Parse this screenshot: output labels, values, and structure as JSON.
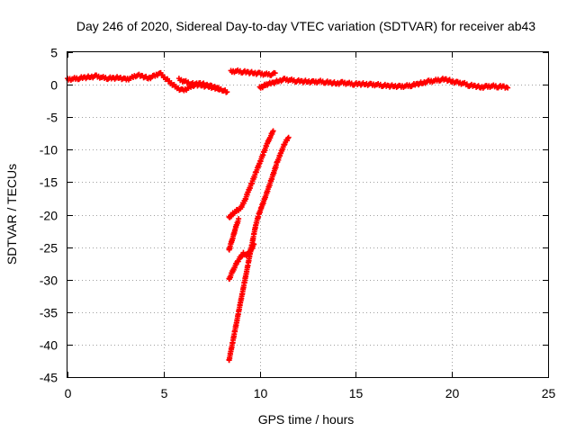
{
  "chart_data": {
    "type": "scatter",
    "title": "Day 246 of 2020, Sidereal Day-to-day VTEC variation (SDTVAR) for receiver ab43",
    "xlabel": "GPS time / hours",
    "ylabel": "SDTVAR / TECUs",
    "xlim": [
      0,
      25
    ],
    "ylim": [
      -45,
      5
    ],
    "xticks": [
      0,
      5,
      10,
      15,
      20,
      25
    ],
    "yticks": [
      5,
      0,
      -5,
      -10,
      -15,
      -20,
      -25,
      -30,
      -35,
      -40,
      -45
    ],
    "grid": true,
    "series": [
      {
        "name": "SDTVAR",
        "color": "#ff0000",
        "marker": "plus",
        "tracks": [
          [
            [
              0.0,
              0.8
            ],
            [
              0.3,
              0.9
            ],
            [
              0.6,
              1.0
            ],
            [
              0.9,
              1.1
            ],
            [
              1.2,
              1.2
            ],
            [
              1.5,
              1.3
            ],
            [
              1.8,
              1.1
            ],
            [
              2.1,
              1.0
            ],
            [
              2.4,
              1.0
            ],
            [
              2.7,
              1.1
            ],
            [
              3.0,
              0.8
            ],
            [
              3.3,
              1.0
            ],
            [
              3.6,
              1.5
            ],
            [
              3.9,
              1.3
            ],
            [
              4.2,
              1.0
            ],
            [
              4.5,
              1.3
            ],
            [
              4.8,
              1.8
            ],
            [
              5.1,
              1.0
            ],
            [
              5.4,
              0.2
            ],
            [
              5.7,
              -0.5
            ],
            [
              6.0,
              -0.9
            ],
            [
              6.3,
              -0.5
            ],
            [
              6.6,
              0.0
            ],
            [
              6.9,
              0.2
            ],
            [
              7.2,
              0.0
            ],
            [
              7.5,
              -0.3
            ],
            [
              7.8,
              -0.6
            ],
            [
              8.1,
              -0.8
            ],
            [
              8.3,
              -1.2
            ]
          ],
          [
            [
              5.8,
              0.8
            ],
            [
              6.1,
              0.5
            ],
            [
              6.4,
              0.2
            ],
            [
              6.7,
              0.0
            ],
            [
              7.0,
              -0.1
            ],
            [
              7.3,
              -0.3
            ],
            [
              7.6,
              -0.4
            ],
            [
              7.9,
              -0.6
            ]
          ],
          [
            [
              8.5,
              2.0
            ],
            [
              8.8,
              2.1
            ],
            [
              9.1,
              2.0
            ],
            [
              9.4,
              1.9
            ],
            [
              9.7,
              1.8
            ],
            [
              10.0,
              1.7
            ],
            [
              10.3,
              1.6
            ],
            [
              10.6,
              1.6
            ],
            [
              10.8,
              1.7
            ]
          ],
          [
            [
              10.0,
              -0.5
            ],
            [
              10.2,
              -0.2
            ],
            [
              10.4,
              0.1
            ],
            [
              10.7,
              0.3
            ],
            [
              11.0,
              0.6
            ],
            [
              11.3,
              0.8
            ],
            [
              11.6,
              0.7
            ],
            [
              11.9,
              0.6
            ],
            [
              12.2,
              0.5
            ],
            [
              12.5,
              0.5
            ],
            [
              12.8,
              0.4
            ],
            [
              13.1,
              0.5
            ],
            [
              13.4,
              0.4
            ],
            [
              13.7,
              0.3
            ],
            [
              14.0,
              0.2
            ],
            [
              14.3,
              0.3
            ],
            [
              14.6,
              0.2
            ],
            [
              14.9,
              0.1
            ],
            [
              15.2,
              0.1
            ],
            [
              15.5,
              0.1
            ],
            [
              15.8,
              0.0
            ],
            [
              16.1,
              0.0
            ],
            [
              16.4,
              -0.1
            ],
            [
              16.7,
              -0.2
            ],
            [
              17.0,
              -0.2
            ],
            [
              17.3,
              -0.3
            ],
            [
              17.6,
              -0.2
            ],
            [
              17.9,
              -0.1
            ],
            [
              18.2,
              0.1
            ],
            [
              18.5,
              0.3
            ],
            [
              18.8,
              0.5
            ],
            [
              19.1,
              0.6
            ],
            [
              19.4,
              0.8
            ],
            [
              19.7,
              0.8
            ],
            [
              20.0,
              0.5
            ],
            [
              20.3,
              0.3
            ],
            [
              20.6,
              0.2
            ],
            [
              20.9,
              -0.1
            ],
            [
              21.2,
              -0.2
            ],
            [
              21.5,
              -0.4
            ],
            [
              21.8,
              -0.3
            ],
            [
              22.1,
              -0.2
            ],
            [
              22.4,
              -0.3
            ],
            [
              22.7,
              -0.3
            ],
            [
              22.9,
              -0.4
            ]
          ],
          [
            [
              8.4,
              -20.5
            ],
            [
              8.55,
              -20.0
            ],
            [
              8.7,
              -19.6
            ],
            [
              8.85,
              -19.3
            ],
            [
              9.0,
              -19.0
            ],
            [
              9.2,
              -18.0
            ],
            [
              9.4,
              -16.5
            ],
            [
              9.6,
              -15.0
            ],
            [
              9.8,
              -13.5
            ],
            [
              10.0,
              -12.0
            ],
            [
              10.2,
              -10.5
            ],
            [
              10.4,
              -9.0
            ],
            [
              10.55,
              -8.0
            ],
            [
              10.7,
              -7.2
            ]
          ],
          [
            [
              8.4,
              -25.5
            ],
            [
              8.5,
              -24.5
            ],
            [
              8.6,
              -23.5
            ],
            [
              8.7,
              -22.5
            ],
            [
              8.8,
              -21.5
            ],
            [
              8.9,
              -20.8
            ]
          ],
          [
            [
              8.4,
              -30.0
            ],
            [
              8.55,
              -29.0
            ],
            [
              8.7,
              -28.0
            ],
            [
              8.85,
              -27.2
            ],
            [
              9.0,
              -26.5
            ],
            [
              9.15,
              -26.0
            ],
            [
              9.3,
              -26.3
            ],
            [
              9.45,
              -25.8
            ],
            [
              9.6,
              -25.2
            ],
            [
              9.7,
              -24.5
            ]
          ],
          [
            [
              8.4,
              -42.5
            ],
            [
              8.5,
              -41.0
            ],
            [
              8.6,
              -39.5
            ],
            [
              8.7,
              -38.0
            ],
            [
              8.8,
              -36.5
            ],
            [
              8.9,
              -35.0
            ],
            [
              9.0,
              -33.5
            ],
            [
              9.1,
              -32.0
            ],
            [
              9.2,
              -30.5
            ],
            [
              9.3,
              -29.0
            ],
            [
              9.4,
              -27.5
            ],
            [
              9.5,
              -26.0
            ],
            [
              9.6,
              -24.5
            ],
            [
              9.7,
              -23.0
            ],
            [
              9.8,
              -21.5
            ],
            [
              9.95,
              -20.0
            ],
            [
              10.1,
              -18.8
            ],
            [
              10.3,
              -17.2
            ],
            [
              10.5,
              -15.5
            ],
            [
              10.7,
              -13.8
            ],
            [
              10.9,
              -12.0
            ],
            [
              11.1,
              -10.5
            ],
            [
              11.3,
              -9.0
            ],
            [
              11.5,
              -8.2
            ]
          ]
        ]
      }
    ]
  }
}
